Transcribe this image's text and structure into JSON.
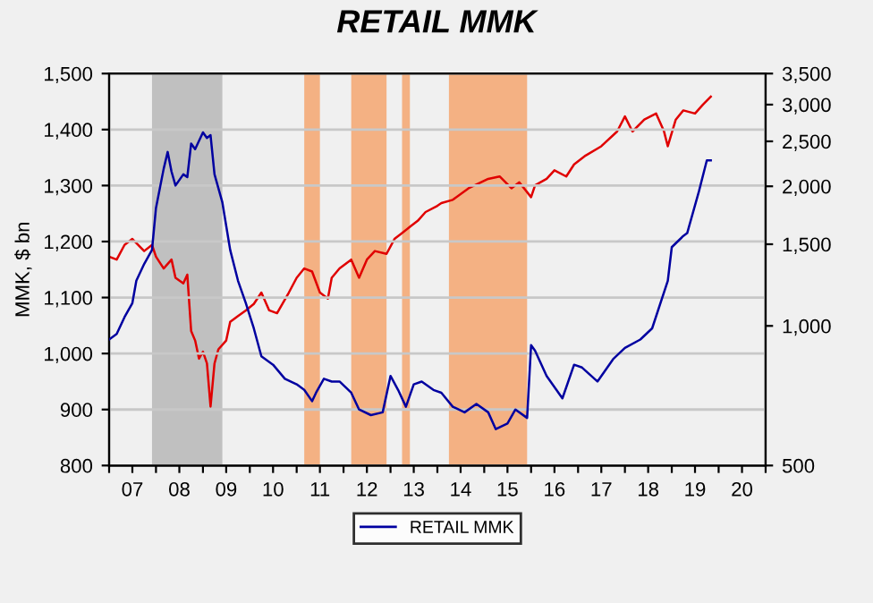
{
  "chart_data": {
    "type": "line",
    "title": "RETAIL MMK",
    "ylabel": "MMK, $ bn",
    "xlim": [
      "2007-01",
      "2021-01"
    ],
    "xticks": [
      {
        "value": "2007-01",
        "label": null
      },
      {
        "value": "2007-07",
        "label": "07"
      },
      {
        "value": "2008-01",
        "label": null
      },
      {
        "value": "2008-07",
        "label": "08"
      },
      {
        "value": "2009-01",
        "label": null
      },
      {
        "value": "2009-07",
        "label": "09"
      },
      {
        "value": "2010-01",
        "label": null
      },
      {
        "value": "2010-07",
        "label": "10"
      },
      {
        "value": "2011-01",
        "label": null
      },
      {
        "value": "2011-07",
        "label": "11"
      },
      {
        "value": "2012-01",
        "label": null
      },
      {
        "value": "2012-07",
        "label": "12"
      },
      {
        "value": "2013-01",
        "label": null
      },
      {
        "value": "2013-07",
        "label": "13"
      },
      {
        "value": "2014-01",
        "label": null
      },
      {
        "value": "2014-07",
        "label": "14"
      },
      {
        "value": "2015-01",
        "label": null
      },
      {
        "value": "2015-07",
        "label": "15"
      },
      {
        "value": "2016-01",
        "label": null
      },
      {
        "value": "2016-07",
        "label": "16"
      },
      {
        "value": "2017-01",
        "label": null
      },
      {
        "value": "2017-07",
        "label": "17"
      },
      {
        "value": "2018-01",
        "label": null
      },
      {
        "value": "2018-07",
        "label": "18"
      },
      {
        "value": "2019-01",
        "label": null
      },
      {
        "value": "2019-07",
        "label": "19"
      },
      {
        "value": "2020-01",
        "label": null
      },
      {
        "value": "2020-07",
        "label": "20"
      },
      {
        "value": "2021-01",
        "label": null
      }
    ],
    "ylim": [
      800,
      1500
    ],
    "yticks": [
      {
        "value": 800,
        "label": "800"
      },
      {
        "value": 900,
        "label": "900"
      },
      {
        "value": 1000,
        "label": "1,000"
      },
      {
        "value": 1100,
        "label": "1,100"
      },
      {
        "value": 1200,
        "label": "1,200"
      },
      {
        "value": 1300,
        "label": "1,300"
      },
      {
        "value": 1400,
        "label": "1,400"
      },
      {
        "value": 1500,
        "label": "1,500"
      }
    ],
    "log": "y2",
    "y2lim": [
      500,
      3500
    ],
    "y2ticks": [
      {
        "value": 500,
        "label": "500"
      },
      {
        "value": 1000,
        "label": "1,000"
      },
      {
        "value": 1500,
        "label": "1,500"
      },
      {
        "value": 2000,
        "label": "2,000"
      },
      {
        "value": 2500,
        "label": "2,500"
      },
      {
        "value": 3000,
        "label": "3,000"
      },
      {
        "value": 3500,
        "label": "3,500"
      }
    ],
    "grid": "y",
    "legend": "bottom",
    "marker": "none",
    "line_style": "solid",
    "bands": [
      {
        "axis": "x",
        "from": "2007-12",
        "to": "2009-06",
        "color": "#c0c0c0"
      },
      {
        "axis": "x",
        "from": "2011-03",
        "to": "2011-07",
        "color": "#f4b183"
      },
      {
        "axis": "x",
        "from": "2012-03",
        "to": "2012-12",
        "color": "#f4b183"
      },
      {
        "axis": "x",
        "from": "2013-04",
        "to": "2013-06",
        "color": "#f4b183"
      },
      {
        "axis": "x",
        "from": "2014-04",
        "to": "2015-12",
        "color": "#f4b183"
      }
    ],
    "series": [
      {
        "name": "RETAIL MMK",
        "color": "#0000a0",
        "x": [
          "2007-01",
          "2007-03",
          "2007-05",
          "2007-07",
          "2007-08",
          "2007-10",
          "2007-12",
          "2008-01",
          "2008-03",
          "2008-04",
          "2008-05",
          "2008-06",
          "2008-08",
          "2008-09",
          "2008-10",
          "2008-11",
          "2009-01",
          "2009-02",
          "2009-03",
          "2009-04",
          "2009-06",
          "2009-08",
          "2009-10",
          "2009-12",
          "2010-02",
          "2010-04",
          "2010-07",
          "2010-10",
          "2011-01",
          "2011-03",
          "2011-05",
          "2011-06",
          "2011-08",
          "2011-10",
          "2011-12",
          "2012-03",
          "2012-05",
          "2012-08",
          "2012-11",
          "2013-01",
          "2013-03",
          "2013-05",
          "2013-07",
          "2013-09",
          "2013-12",
          "2014-02",
          "2014-05",
          "2014-08",
          "2014-11",
          "2015-02",
          "2015-04",
          "2015-07",
          "2015-09",
          "2015-12",
          "2016-01",
          "2016-02",
          "2016-05",
          "2016-09",
          "2016-12",
          "2017-02",
          "2017-06",
          "2017-10",
          "2018-01",
          "2018-05",
          "2018-08",
          "2018-12",
          "2019-01",
          "2019-04",
          "2019-05",
          "2019-08",
          "2019-10",
          "2019-11"
        ],
        "values": [
          1025,
          1035,
          1065,
          1090,
          1130,
          1160,
          1185,
          1260,
          1330,
          1360,
          1325,
          1300,
          1320,
          1315,
          1375,
          1365,
          1395,
          1385,
          1390,
          1320,
          1270,
          1185,
          1130,
          1090,
          1045,
          995,
          980,
          955,
          945,
          935,
          915,
          930,
          955,
          950,
          950,
          930,
          900,
          890,
          895,
          960,
          935,
          905,
          945,
          950,
          935,
          930,
          905,
          895,
          910,
          895,
          865,
          875,
          900,
          885,
          1015,
          1005,
          960,
          920,
          980,
          975,
          950,
          990,
          1010,
          1025,
          1045,
          1130,
          1190,
          1210,
          1215,
          1290,
          1345,
          1345
        ]
      },
      {
        "color": "#e00000",
        "axis": "y2",
        "x": [
          "2007-01",
          "2007-03",
          "2007-05",
          "2007-07",
          "2007-10",
          "2007-12",
          "2008-01",
          "2008-03",
          "2008-05",
          "2008-06",
          "2008-08",
          "2008-09",
          "2008-10",
          "2008-11",
          "2008-12",
          "2009-01",
          "2009-02",
          "2009-03",
          "2009-04",
          "2009-05",
          "2009-07",
          "2009-08",
          "2009-10",
          "2009-12",
          "2010-02",
          "2010-04",
          "2010-06",
          "2010-08",
          "2010-11",
          "2011-01",
          "2011-03",
          "2011-05",
          "2011-07",
          "2011-09",
          "2011-10",
          "2011-12",
          "2012-03",
          "2012-05",
          "2012-07",
          "2012-09",
          "2012-12",
          "2013-02",
          "2013-04",
          "2013-06",
          "2013-08",
          "2013-10",
          "2014-01",
          "2014-02",
          "2014-05",
          "2014-09",
          "2015-02",
          "2015-05",
          "2015-08",
          "2015-10",
          "2016-01",
          "2016-02",
          "2016-05",
          "2016-07",
          "2016-10",
          "2016-12",
          "2017-03",
          "2017-07",
          "2017-11",
          "2018-01",
          "2018-03",
          "2018-06",
          "2018-09",
          "2018-11",
          "2018-12",
          "2019-02",
          "2019-04",
          "2019-07",
          "2019-09",
          "2019-11"
        ],
        "values": [
          1410,
          1390,
          1495,
          1540,
          1450,
          1495,
          1410,
          1330,
          1390,
          1270,
          1235,
          1290,
          975,
          930,
          850,
          880,
          830,
          670,
          830,
          890,
          930,
          1020,
          1050,
          1080,
          1115,
          1180,
          1080,
          1065,
          1180,
          1270,
          1330,
          1310,
          1180,
          1145,
          1270,
          1330,
          1390,
          1270,
          1390,
          1450,
          1430,
          1540,
          1585,
          1635,
          1685,
          1760,
          1815,
          1840,
          1870,
          1980,
          2075,
          2100,
          1980,
          2040,
          1895,
          2010,
          2075,
          2165,
          2100,
          2230,
          2330,
          2440,
          2625,
          2830,
          2625,
          2785,
          2870,
          2630,
          2440,
          2785,
          2915,
          2870,
          3000,
          3120
        ]
      }
    ]
  }
}
